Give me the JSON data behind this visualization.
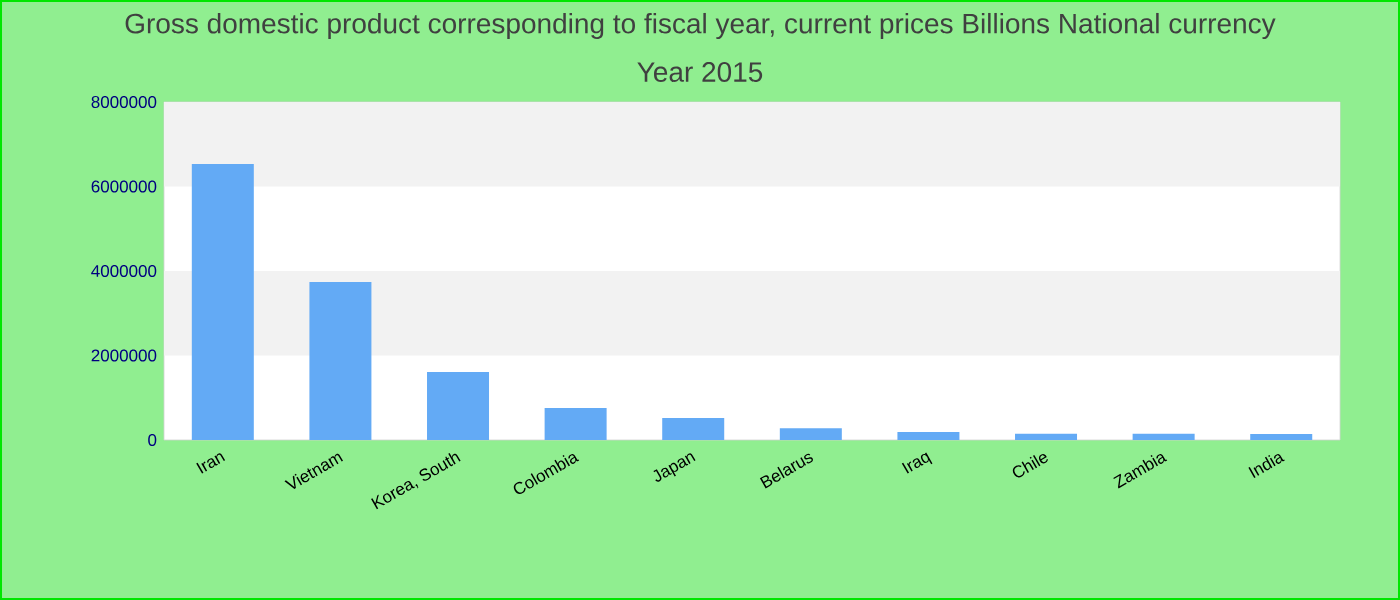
{
  "chart_data": {
    "type": "bar",
    "title": "Gross domestic product corresponding to fiscal year, current prices Billions National currency",
    "subtitle": "Year 2015",
    "categories": [
      "Iran",
      "Vietnam",
      "Korea, South",
      "Colombia",
      "Japan",
      "Belarus",
      "Iraq",
      "Chile",
      "Zambia",
      "India"
    ],
    "values": [
      6530000,
      3740000,
      1610000,
      760000,
      520000,
      280000,
      190000,
      150000,
      150000,
      140000
    ],
    "color": "#63aaf5",
    "ylim": [
      0,
      8000000
    ],
    "yticks": [
      0,
      2000000,
      4000000,
      6000000,
      8000000
    ]
  }
}
